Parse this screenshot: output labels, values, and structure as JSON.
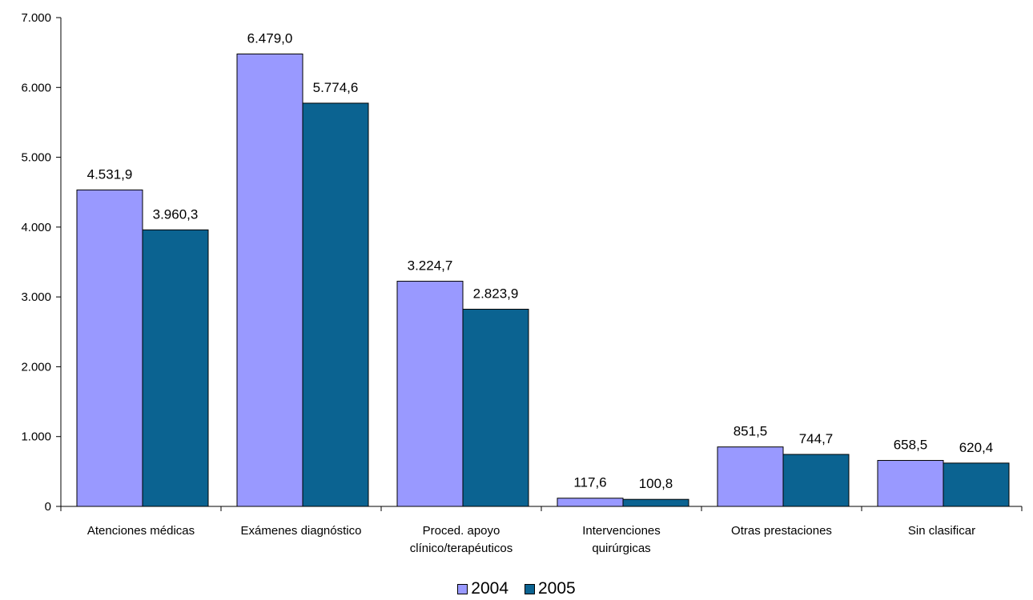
{
  "chart_data": {
    "type": "bar",
    "categories": [
      [
        "Atenciones médicas"
      ],
      [
        "Exámenes diagnóstico"
      ],
      [
        "Proced. apoyo",
        "clínico/terapéuticos"
      ],
      [
        "Intervenciones",
        "quirúrgicas"
      ],
      [
        "Otras prestaciones"
      ],
      [
        "Sin clasificar"
      ]
    ],
    "series": [
      {
        "name": "2004",
        "color": "#9999ff",
        "values": [
          4531.9,
          6479.0,
          3224.7,
          117.6,
          851.5,
          658.5
        ],
        "labels": [
          "4.531,9",
          "6.479,0",
          "3.224,7",
          "117,6",
          "851,5",
          "658,5"
        ]
      },
      {
        "name": "2005",
        "color": "#0b6391",
        "values": [
          3960.3,
          5774.6,
          2823.9,
          100.8,
          744.7,
          620.4
        ],
        "labels": [
          "3.960,3",
          "5.774,6",
          "2.823,9",
          "100,8",
          "744,7",
          "620,4"
        ]
      }
    ],
    "ylim": [
      0,
      7000
    ],
    "yticks": [
      {
        "value": 0,
        "label": "0"
      },
      {
        "value": 1000,
        "label": "1.000"
      },
      {
        "value": 2000,
        "label": "2.000"
      },
      {
        "value": 3000,
        "label": "3.000"
      },
      {
        "value": 4000,
        "label": "4.000"
      },
      {
        "value": 5000,
        "label": "5.000"
      },
      {
        "value": 6000,
        "label": "6.000"
      },
      {
        "value": 7000,
        "label": "7.000"
      }
    ],
    "grid": false,
    "legend_position": "bottom",
    "title": "",
    "xlabel": "",
    "ylabel": ""
  }
}
